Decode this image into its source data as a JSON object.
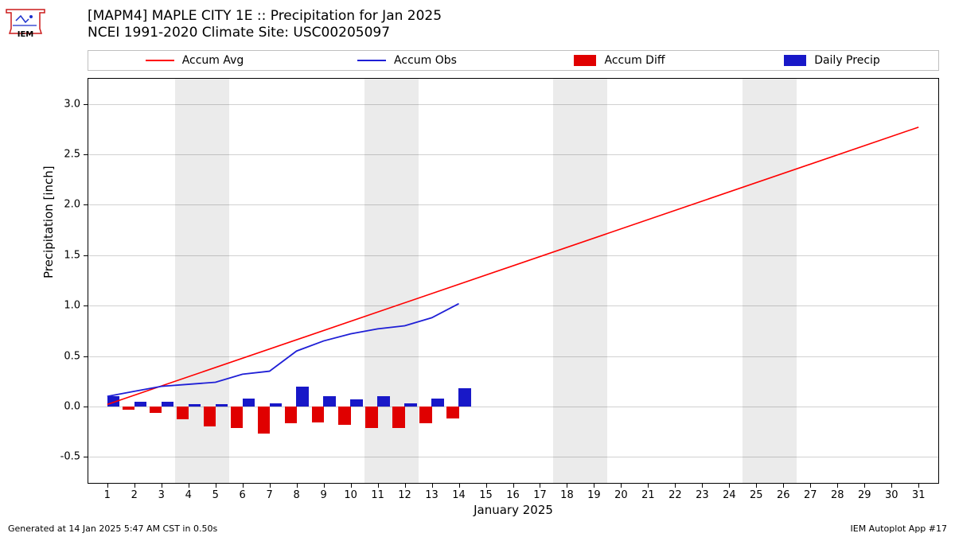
{
  "title_line1": "[MAPM4] MAPLE CITY 1E :: Precipitation for Jan 2025",
  "title_line2": "NCEI 1991-2020 Climate Site: USC00205097",
  "legend": {
    "accum_avg": "Accum Avg",
    "accum_obs": "Accum Obs",
    "accum_diff": "Accum Diff",
    "daily_precip": "Daily Precip"
  },
  "footer_left": "Generated at 14 Jan 2025 5:47 AM CST in 0.50s",
  "footer_right": "IEM Autoplot App #17",
  "chart": {
    "type": "mixed line+bar",
    "xlabel": "January 2025",
    "ylabel": "Precipitation [inch]",
    "ylim": [
      -0.75,
      3.25
    ],
    "yticks": [
      -0.5,
      0.0,
      0.5,
      1.0,
      1.5,
      2.0,
      2.5,
      3.0
    ],
    "xlim": [
      0.3,
      31.7
    ],
    "xticks": [
      1,
      2,
      3,
      4,
      5,
      6,
      7,
      8,
      9,
      10,
      11,
      12,
      13,
      14,
      15,
      16,
      17,
      18,
      19,
      20,
      21,
      22,
      23,
      24,
      25,
      26,
      27,
      28,
      29,
      30,
      31
    ],
    "weekend_bands": [
      [
        3.5,
        5.5
      ],
      [
        10.5,
        12.5
      ],
      [
        17.5,
        19.5
      ],
      [
        24.5,
        26.5
      ]
    ],
    "band_color": "#ebebeb",
    "grid_color": "rgba(0,0,0,0.18)",
    "background_color": "#ffffff",
    "colors": {
      "accum_avg": "#ff0000",
      "accum_obs": "#1f1fd6",
      "accum_diff": "#e00000",
      "daily_precip": "#1818c8"
    },
    "line_width_avg": 1.6,
    "line_width_obs": 1.8,
    "bar_width": 0.45,
    "bar_offset_diff": -0.22,
    "bar_offset_daily": 0.22,
    "accum_avg": [
      [
        1,
        0.02
      ],
      [
        31,
        2.77
      ]
    ],
    "accum_obs": [
      [
        1,
        0.1
      ],
      [
        2,
        0.15
      ],
      [
        3,
        0.2
      ],
      [
        4,
        0.22
      ],
      [
        5,
        0.24
      ],
      [
        6,
        0.32
      ],
      [
        7,
        0.35
      ],
      [
        8,
        0.55
      ],
      [
        9,
        0.65
      ],
      [
        10,
        0.72
      ],
      [
        11,
        0.77
      ],
      [
        12,
        0.8
      ],
      [
        13,
        0.88
      ],
      [
        14,
        1.02
      ]
    ],
    "accum_diff_days": [
      1,
      2,
      3,
      4,
      5,
      6,
      7,
      8,
      9,
      10,
      11,
      12,
      13,
      14
    ],
    "accum_diff_values": [
      0.0,
      -0.03,
      -0.06,
      -0.13,
      -0.2,
      -0.21,
      -0.27,
      -0.17,
      -0.16,
      -0.18,
      -0.21,
      -0.21,
      -0.17,
      -0.12
    ],
    "daily_precip_days": [
      1,
      2,
      3,
      4,
      5,
      6,
      7,
      8,
      9,
      10,
      11,
      12,
      13,
      14
    ],
    "daily_precip_values": [
      0.1,
      0.05,
      0.05,
      0.02,
      0.02,
      0.08,
      0.03,
      0.2,
      0.1,
      0.07,
      0.1,
      0.03,
      0.08,
      0.18
    ]
  }
}
